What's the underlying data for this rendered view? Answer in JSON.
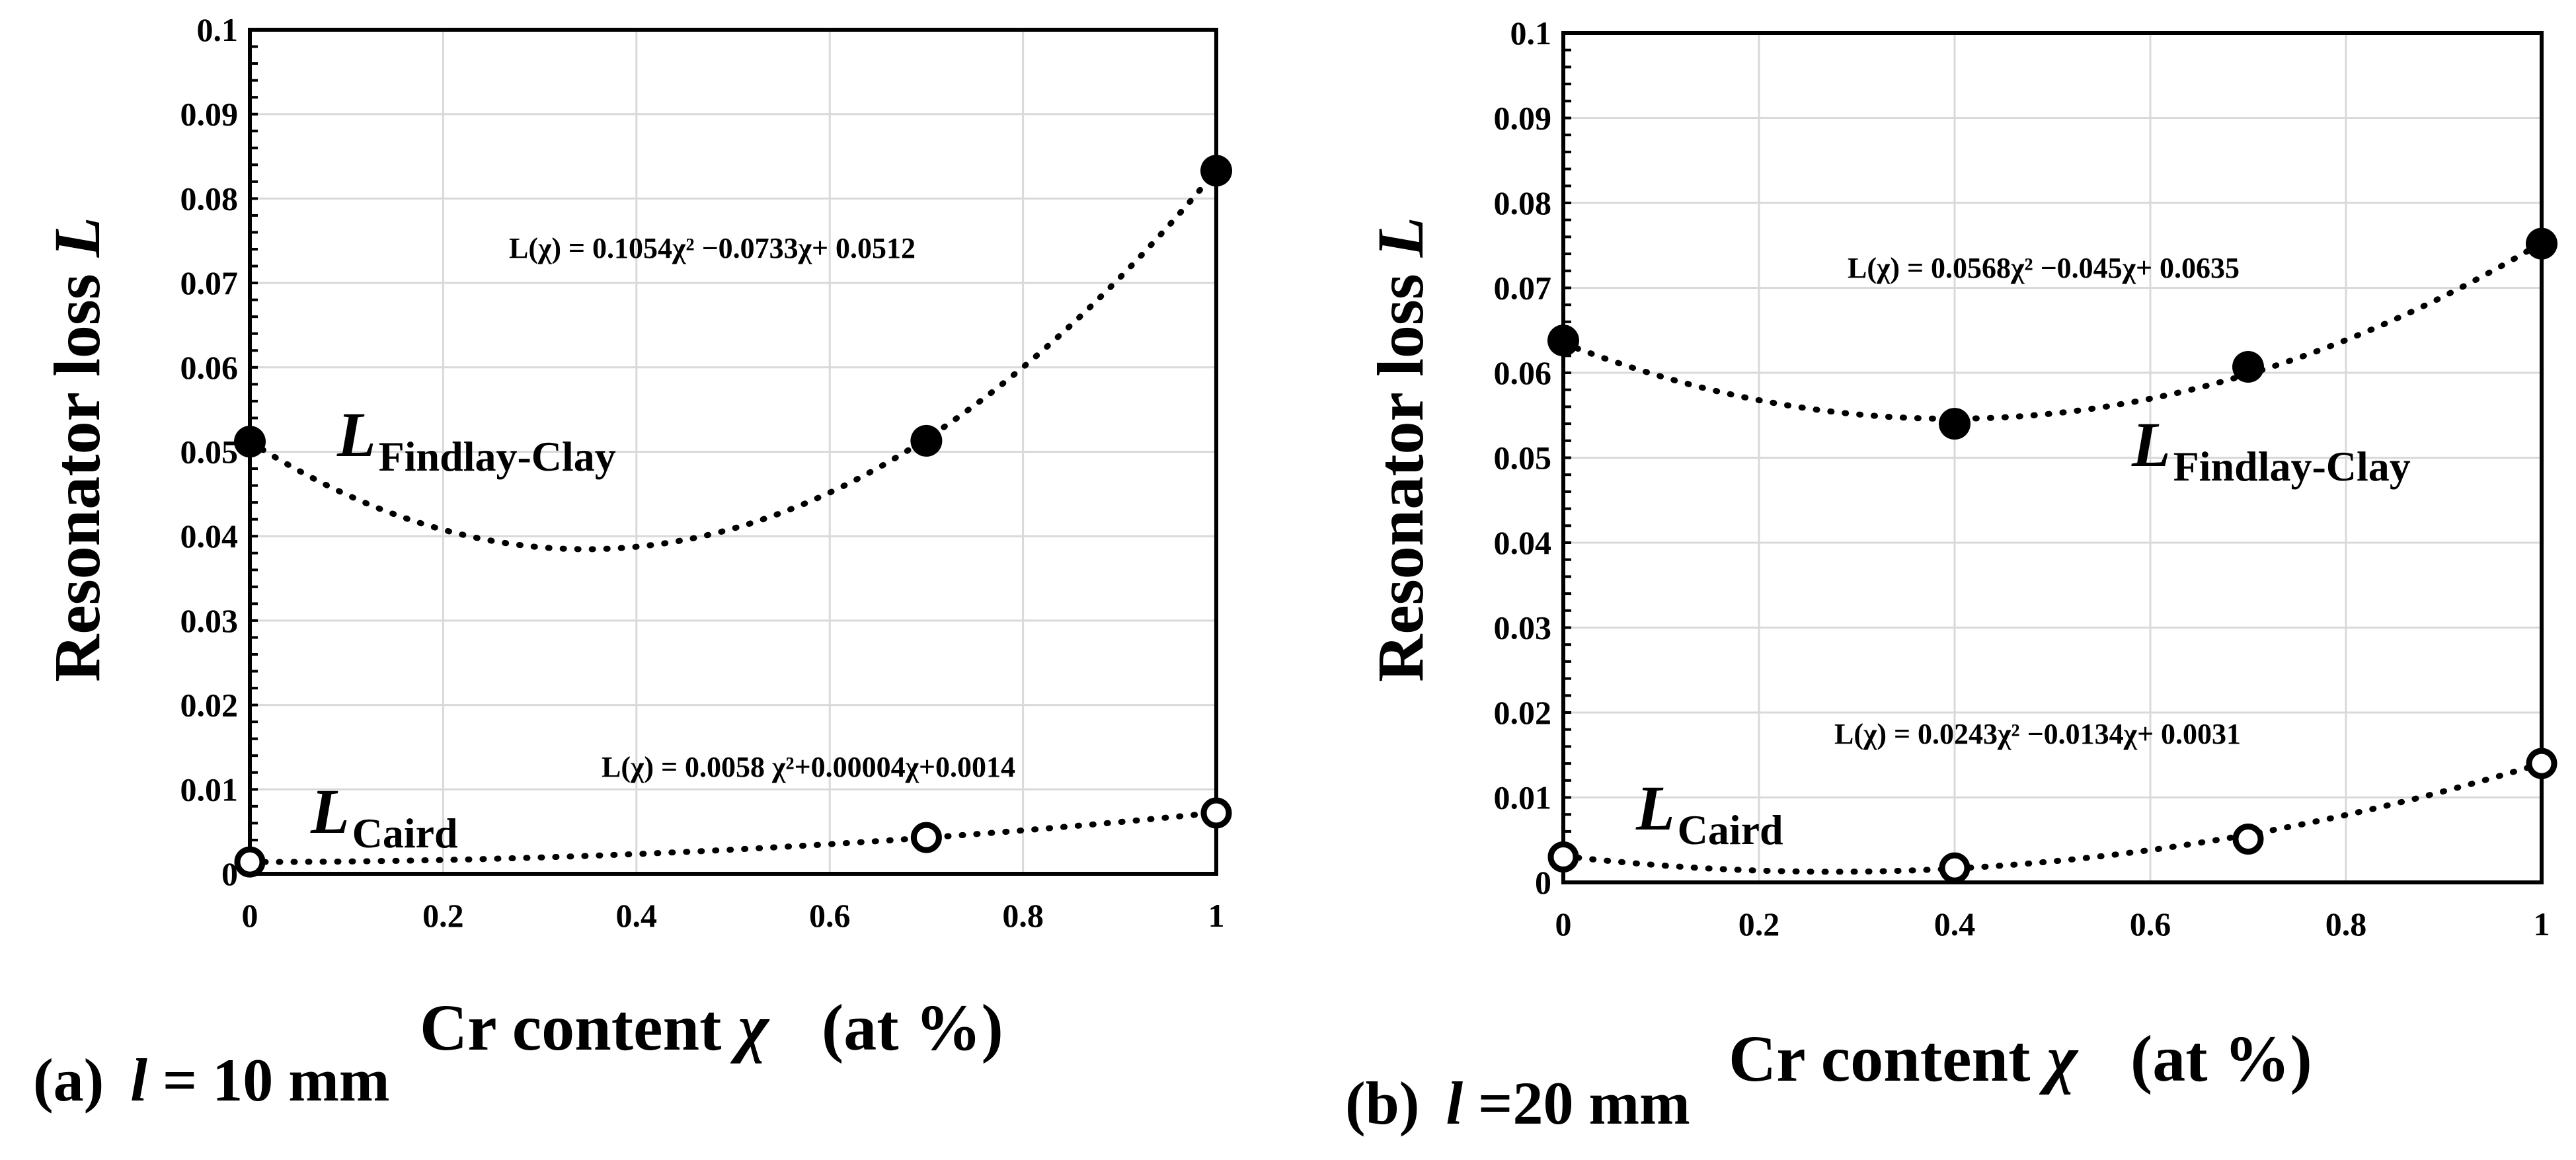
{
  "chart_data": [
    {
      "type": "scatter",
      "panel": "(a)",
      "length_symbol": "l",
      "length_text": " = 10 mm",
      "xlabel": "Cr content χ (at %)",
      "xlabel_main": "Cr content ",
      "xlabel_var": "χ",
      "xlabel_unit": "(at %)",
      "ylabel_main": "Resonator loss ",
      "ylabel_var": "L",
      "xlim": [
        0,
        1
      ],
      "ylim": [
        0,
        0.1
      ],
      "xticks": [
        "0",
        "0.2",
        "0.4",
        "0.6",
        "0.8",
        "1"
      ],
      "yticks": [
        "0",
        "0.01",
        "0.02",
        "0.03",
        "0.04",
        "0.05",
        "0.06",
        "0.07",
        "0.08",
        "0.09",
        "0.1"
      ],
      "series": [
        {
          "name": "L Findlay-Clay",
          "label_main": "L",
          "label_sub": "Findlay-Clay",
          "marker": "filled",
          "x": [
            0,
            0.7,
            1
          ],
          "y": [
            0.0512,
            0.0513,
            0.0833
          ],
          "fit": [
            0.1054,
            -0.0733,
            0.0512
          ],
          "equation": "L(χ) = 0.1054χ² −0.0733χ+ 0.0512"
        },
        {
          "name": "L Caird",
          "label_main": "L",
          "label_sub": "Caird",
          "marker": "open",
          "x": [
            0,
            0.7,
            1
          ],
          "y": [
            0.0014,
            0.0043,
            0.0072
          ],
          "fit": [
            0.0058,
            4e-05,
            0.0014
          ],
          "equation": "L(χ) = 0.0058 χ²+0.00004χ+0.0014"
        }
      ]
    },
    {
      "type": "scatter",
      "panel": "(b)",
      "length_symbol": "l",
      "length_text": " =20 mm",
      "xlabel": "Cr content χ (at %)",
      "xlabel_main": "Cr content ",
      "xlabel_var": "χ",
      "xlabel_unit": "(at %)",
      "ylabel_main": "Resonator loss ",
      "ylabel_var": "L",
      "xlim": [
        0,
        1
      ],
      "ylim": [
        0,
        0.1
      ],
      "xticks": [
        "0",
        "0.2",
        "0.4",
        "0.6",
        "0.8",
        "1"
      ],
      "yticks": [
        "0",
        "0.01",
        "0.02",
        "0.03",
        "0.04",
        "0.05",
        "0.06",
        "0.07",
        "0.08",
        "0.09",
        "0.1"
      ],
      "series": [
        {
          "name": "L Findlay-Clay",
          "label_main": "L",
          "label_sub": "Findlay-Clay",
          "marker": "filled",
          "x": [
            0,
            0.4,
            0.7,
            1
          ],
          "y": [
            0.0638,
            0.054,
            0.0607,
            0.0752
          ],
          "fit": [
            0.0568,
            -0.045,
            0.0635
          ],
          "equation": "L(χ) = 0.0568χ² −0.045χ+ 0.0635"
        },
        {
          "name": "L Caird",
          "label_main": "L",
          "label_sub": "Caird",
          "marker": "open",
          "x": [
            0,
            0.4,
            0.7,
            1
          ],
          "y": [
            0.003,
            0.0017,
            0.0051,
            0.014
          ],
          "fit": [
            0.0243,
            -0.0134,
            0.0031
          ],
          "equation": "L(χ) = 0.0243χ² −0.0134χ+ 0.0031"
        }
      ]
    }
  ]
}
